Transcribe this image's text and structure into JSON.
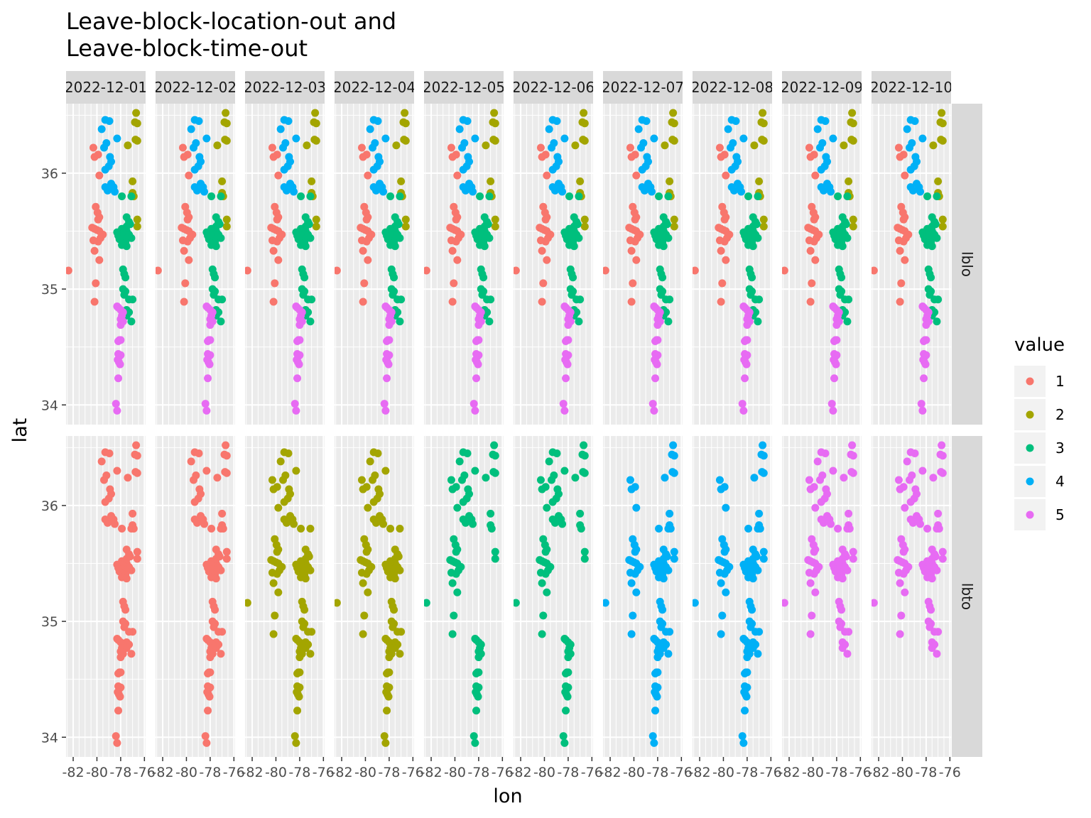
{
  "chart_data": {
    "type": "scatter",
    "title_lines": [
      "Leave-block-location-out and",
      "Leave-block-time-out"
    ],
    "xlabel": "lon",
    "ylabel": "lat",
    "xlim": [
      -82.6,
      -75.9
    ],
    "ylim": [
      33.83,
      36.6
    ],
    "x_ticks": [
      -82,
      -80,
      -78,
      -76
    ],
    "x_tick_labels": [
      "-82",
      "-80",
      "-78",
      "-76"
    ],
    "y_ticks": [
      34,
      35,
      36
    ],
    "y_tick_labels": [
      "34",
      "35",
      "36"
    ],
    "grid": true,
    "col_facets": [
      "2022-12-01",
      "2022-12-02",
      "2022-12-03",
      "2022-12-04",
      "2022-12-05",
      "2022-12-06",
      "2022-12-07",
      "2022-12-08",
      "2022-12-09",
      "2022-12-10"
    ],
    "row_facets": [
      "lblo",
      "lbto"
    ],
    "lbto_fold_by_date": [
      1,
      1,
      2,
      2,
      3,
      3,
      4,
      4,
      5,
      5
    ],
    "legend": {
      "title": "value",
      "position": "right",
      "entries": [
        {
          "label": "1",
          "color": "#F8766D"
        },
        {
          "label": "2",
          "color": "#A3A500"
        },
        {
          "label": "3",
          "color": "#00BF7D"
        },
        {
          "label": "4",
          "color": "#00B0F6"
        },
        {
          "label": "5",
          "color": "#E76BF3"
        }
      ]
    },
    "points": [
      {
        "lon": -82.4,
        "lat": 35.16,
        "lblo": 1
      },
      {
        "lon": -80.3,
        "lat": 36.22,
        "lblo": 1
      },
      {
        "lon": -80.2,
        "lat": 36.14,
        "lblo": 1
      },
      {
        "lon": -79.9,
        "lat": 36.16,
        "lblo": 1
      },
      {
        "lon": -79.8,
        "lat": 35.98,
        "lblo": 1
      },
      {
        "lon": -80.1,
        "lat": 35.71,
        "lblo": 1
      },
      {
        "lon": -79.95,
        "lat": 35.66,
        "lblo": 1
      },
      {
        "lon": -79.8,
        "lat": 35.62,
        "lblo": 1
      },
      {
        "lon": -79.9,
        "lat": 35.6,
        "lblo": 1
      },
      {
        "lon": -80.4,
        "lat": 35.53,
        "lblo": 1
      },
      {
        "lon": -80.2,
        "lat": 35.52,
        "lblo": 1
      },
      {
        "lon": -80.0,
        "lat": 35.51,
        "lblo": 1
      },
      {
        "lon": -79.8,
        "lat": 35.5,
        "lblo": 1
      },
      {
        "lon": -79.5,
        "lat": 35.47,
        "lblo": 1
      },
      {
        "lon": -79.7,
        "lat": 35.44,
        "lblo": 1
      },
      {
        "lon": -80.3,
        "lat": 35.42,
        "lblo": 1
      },
      {
        "lon": -79.9,
        "lat": 35.41,
        "lblo": 1
      },
      {
        "lon": -80.2,
        "lat": 35.33,
        "lblo": 1
      },
      {
        "lon": -79.8,
        "lat": 35.25,
        "lblo": 1
      },
      {
        "lon": -80.1,
        "lat": 35.05,
        "lblo": 1
      },
      {
        "lon": -80.2,
        "lat": 34.89,
        "lblo": 1
      },
      {
        "lon": -79.3,
        "lat": 36.46,
        "lblo": 4
      },
      {
        "lon": -78.95,
        "lat": 36.45,
        "lblo": 4
      },
      {
        "lon": -79.6,
        "lat": 36.38,
        "lblo": 4
      },
      {
        "lon": -78.3,
        "lat": 36.3,
        "lblo": 4
      },
      {
        "lon": -79.2,
        "lat": 36.26,
        "lblo": 4
      },
      {
        "lon": -79.4,
        "lat": 36.22,
        "lblo": 4
      },
      {
        "lon": -78.9,
        "lat": 36.14,
        "lblo": 4
      },
      {
        "lon": -78.8,
        "lat": 36.1,
        "lblo": 4
      },
      {
        "lon": -79.0,
        "lat": 36.06,
        "lblo": 4
      },
      {
        "lon": -79.3,
        "lat": 36.03,
        "lblo": 4
      },
      {
        "lon": -78.8,
        "lat": 35.91,
        "lblo": 4
      },
      {
        "lon": -79.3,
        "lat": 35.88,
        "lblo": 4
      },
      {
        "lon": -78.6,
        "lat": 35.88,
        "lblo": 4
      },
      {
        "lon": -79.1,
        "lat": 35.85,
        "lblo": 4
      },
      {
        "lon": -78.5,
        "lat": 35.84,
        "lblo": 4
      },
      {
        "lon": -76.7,
        "lat": 36.52,
        "lblo": 2
      },
      {
        "lon": -76.8,
        "lat": 36.44,
        "lblo": 2
      },
      {
        "lon": -76.6,
        "lat": 36.43,
        "lblo": 2
      },
      {
        "lon": -76.75,
        "lat": 36.29,
        "lblo": 2
      },
      {
        "lon": -76.6,
        "lat": 36.28,
        "lblo": 2
      },
      {
        "lon": -77.4,
        "lat": 36.24,
        "lblo": 2
      },
      {
        "lon": -77.0,
        "lat": 35.93,
        "lblo": 2
      },
      {
        "lon": -77.0,
        "lat": 35.83,
        "lblo": 2
      },
      {
        "lon": -76.9,
        "lat": 35.8,
        "lblo": 2
      },
      {
        "lon": -76.6,
        "lat": 35.6,
        "lblo": 2
      },
      {
        "lon": -76.6,
        "lat": 35.54,
        "lblo": 2
      },
      {
        "lon": -77.9,
        "lat": 35.8,
        "lblo": 3
      },
      {
        "lon": -77.1,
        "lat": 35.8,
        "lblo": 3
      },
      {
        "lon": -77.5,
        "lat": 35.62,
        "lblo": 3
      },
      {
        "lon": -77.3,
        "lat": 35.58,
        "lblo": 3
      },
      {
        "lon": -77.2,
        "lat": 35.56,
        "lblo": 3
      },
      {
        "lon": -77.5,
        "lat": 35.54,
        "lblo": 3
      },
      {
        "lon": -77.9,
        "lat": 35.52,
        "lblo": 3
      },
      {
        "lon": -77.7,
        "lat": 35.5,
        "lblo": 3
      },
      {
        "lon": -77.5,
        "lat": 35.5,
        "lblo": 3
      },
      {
        "lon": -78.3,
        "lat": 35.49,
        "lblo": 3
      },
      {
        "lon": -78.1,
        "lat": 35.49,
        "lblo": 3
      },
      {
        "lon": -77.8,
        "lat": 35.48,
        "lblo": 3
      },
      {
        "lon": -77.6,
        "lat": 35.47,
        "lblo": 3
      },
      {
        "lon": -77.3,
        "lat": 35.47,
        "lblo": 3
      },
      {
        "lon": -78.2,
        "lat": 35.46,
        "lblo": 3
      },
      {
        "lon": -78.0,
        "lat": 35.45,
        "lblo": 3
      },
      {
        "lon": -77.9,
        "lat": 35.45,
        "lblo": 3
      },
      {
        "lon": -77.4,
        "lat": 35.44,
        "lblo": 3
      },
      {
        "lon": -77.1,
        "lat": 35.44,
        "lblo": 3
      },
      {
        "lon": -78.1,
        "lat": 35.43,
        "lblo": 3
      },
      {
        "lon": -77.8,
        "lat": 35.41,
        "lblo": 3
      },
      {
        "lon": -77.6,
        "lat": 35.4,
        "lblo": 3
      },
      {
        "lon": -77.9,
        "lat": 35.38,
        "lblo": 3
      },
      {
        "lon": -77.5,
        "lat": 35.37,
        "lblo": 3
      },
      {
        "lon": -77.8,
        "lat": 35.17,
        "lblo": 3
      },
      {
        "lon": -77.7,
        "lat": 35.13,
        "lblo": 3
      },
      {
        "lon": -77.6,
        "lat": 35.1,
        "lblo": 3
      },
      {
        "lon": -77.8,
        "lat": 35.0,
        "lblo": 3
      },
      {
        "lon": -77.6,
        "lat": 34.98,
        "lblo": 3
      },
      {
        "lon": -77.7,
        "lat": 34.95,
        "lblo": 3
      },
      {
        "lon": -77.3,
        "lat": 34.91,
        "lblo": 3
      },
      {
        "lon": -77.0,
        "lat": 34.91,
        "lblo": 3
      },
      {
        "lon": -77.5,
        "lat": 34.82,
        "lblo": 3
      },
      {
        "lon": -77.3,
        "lat": 34.8,
        "lblo": 3
      },
      {
        "lon": -77.5,
        "lat": 34.77,
        "lblo": 3
      },
      {
        "lon": -77.1,
        "lat": 34.72,
        "lblo": 3
      },
      {
        "lon": -78.3,
        "lat": 34.85,
        "lblo": 5
      },
      {
        "lon": -78.2,
        "lat": 34.84,
        "lblo": 5
      },
      {
        "lon": -78.0,
        "lat": 34.82,
        "lblo": 5
      },
      {
        "lon": -77.8,
        "lat": 34.8,
        "lblo": 5
      },
      {
        "lon": -77.9,
        "lat": 34.77,
        "lblo": 5
      },
      {
        "lon": -78.0,
        "lat": 34.74,
        "lblo": 5
      },
      {
        "lon": -77.8,
        "lat": 34.72,
        "lblo": 5
      },
      {
        "lon": -78.0,
        "lat": 34.69,
        "lblo": 5
      },
      {
        "lon": -78.1,
        "lat": 34.56,
        "lblo": 5
      },
      {
        "lon": -78.2,
        "lat": 34.55,
        "lblo": 5
      },
      {
        "lon": -78.0,
        "lat": 34.56,
        "lblo": 5
      },
      {
        "lon": -78.2,
        "lat": 34.44,
        "lblo": 5
      },
      {
        "lon": -78.1,
        "lat": 34.42,
        "lblo": 5
      },
      {
        "lon": -78.0,
        "lat": 34.43,
        "lblo": 5
      },
      {
        "lon": -78.25,
        "lat": 34.39,
        "lblo": 5
      },
      {
        "lon": -78.15,
        "lat": 34.37,
        "lblo": 5
      },
      {
        "lon": -78.05,
        "lat": 34.35,
        "lblo": 5
      },
      {
        "lon": -78.2,
        "lat": 34.23,
        "lblo": 5
      },
      {
        "lon": -78.4,
        "lat": 34.01,
        "lblo": 5
      },
      {
        "lon": -78.3,
        "lat": 33.95,
        "lblo": 5
      }
    ]
  }
}
